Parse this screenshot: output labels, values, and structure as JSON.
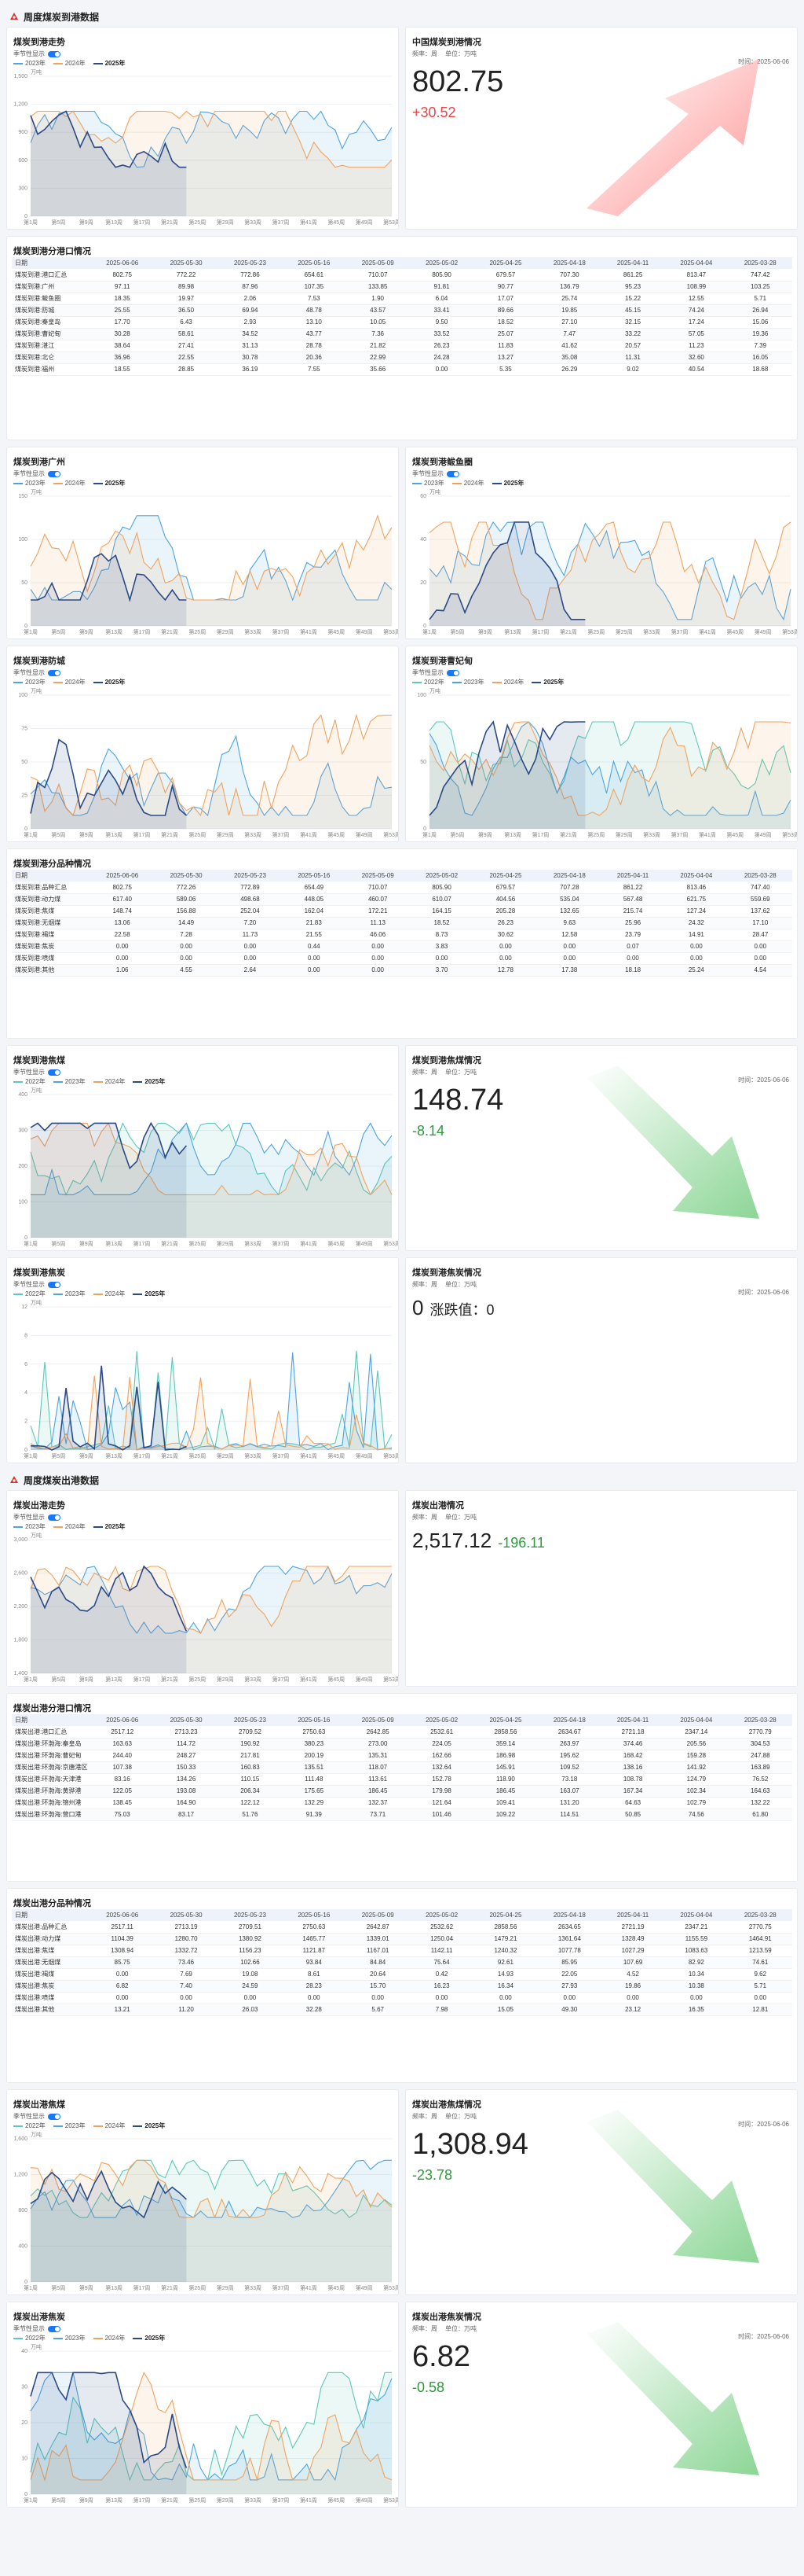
{
  "sections": {
    "arrival": "周度煤炭到港数据",
    "departure": "周度煤炭出港数据"
  },
  "common": {
    "toggle_label": "季节性显示",
    "unit_label": "万吨",
    "meta_freq": "频率：周",
    "meta_unit": "单位：万吨",
    "time_label": "时间：2025-06-06",
    "week_ticks": [
      "第1周",
      "第5周",
      "第9周",
      "第13周",
      "第17周",
      "第21周",
      "第25周",
      "第29周",
      "第33周",
      "第37周",
      "第41周",
      "第45周",
      "第49周",
      "第53周"
    ]
  },
  "legends": {
    "three": [
      "2023年",
      "2024年",
      "2025年"
    ],
    "four": [
      "2022年",
      "2023年",
      "2024年",
      "2025年"
    ]
  },
  "colors": {
    "y2022": "#5cc8b8",
    "y2023": "#4fa3e0",
    "y2024": "#f0a35e",
    "y2025": "#2b4a86",
    "up": "#e64545",
    "down": "#2e9a3c"
  },
  "arrival_trend": {
    "title": "煤炭到港走势",
    "yticks": [
      "1,500",
      "1,200",
      "900",
      "600",
      "300",
      "0"
    ]
  },
  "arrival_info": {
    "title": "中国煤炭到港情况",
    "value": "802.75",
    "change": "+30.52"
  },
  "port_table": {
    "title": "煤炭到港分港口情况",
    "headers": [
      "日期",
      "2025-06-06",
      "2025-05-30",
      "2025-05-23",
      "2025-05-16",
      "2025-05-09",
      "2025-05-02",
      "2025-04-25",
      "2025-04-18",
      "2025-04-11",
      "2025-04-04",
      "2025-03-28"
    ],
    "rows": [
      [
        "煤炭到港:港口汇总",
        "802.75",
        "772.22",
        "772.86",
        "654.61",
        "710.07",
        "805.90",
        "679.57",
        "707.30",
        "861.25",
        "813.47",
        "747.42"
      ],
      [
        "煤炭到港:广州",
        "97.11",
        "89.98",
        "87.96",
        "107.35",
        "133.85",
        "91.81",
        "90.77",
        "136.79",
        "95.23",
        "108.99",
        "103.25"
      ],
      [
        "煤炭到港:鲅鱼圈",
        "18.35",
        "19.97",
        "2.06",
        "7.53",
        "1.90",
        "6.04",
        "17.07",
        "25.74",
        "15.22",
        "12.55",
        "5.71"
      ],
      [
        "煤炭到港:防城",
        "25.55",
        "36.50",
        "69.94",
        "48.78",
        "43.57",
        "33.41",
        "89.66",
        "19.85",
        "45.15",
        "74.24",
        "26.94"
      ],
      [
        "煤炭到港:秦皇岛",
        "17.70",
        "6.43",
        "2.93",
        "13.10",
        "10.05",
        "9.50",
        "18.52",
        "27.10",
        "32.15",
        "17.24",
        "15.06"
      ],
      [
        "煤炭到港:曹妃甸",
        "30.28",
        "58.61",
        "34.52",
        "43.77",
        "7.36",
        "33.52",
        "25.07",
        "7.47",
        "33.22",
        "57.05",
        "19.36"
      ],
      [
        "煤炭到港:湛江",
        "38.64",
        "27.41",
        "31.13",
        "28.78",
        "21.82",
        "26.23",
        "11.83",
        "41.62",
        "20.57",
        "11.23",
        "7.39"
      ],
      [
        "煤炭到港:北仑",
        "36.96",
        "22.55",
        "30.78",
        "20.36",
        "22.99",
        "24.28",
        "13.27",
        "35.08",
        "11.31",
        "32.60",
        "16.05"
      ],
      [
        "煤炭到港:福州",
        "18.55",
        "28.85",
        "36.19",
        "7.55",
        "35.66",
        "0.00",
        "5.35",
        "26.29",
        "9.02",
        "40.54",
        "18.68"
      ]
    ]
  },
  "guangzhou": {
    "title": "煤炭到港广州",
    "yticks": [
      "150",
      "100",
      "50",
      "0"
    ]
  },
  "bayuquan": {
    "title": "煤炭到港鲅鱼圈",
    "yticks": [
      "60",
      "40",
      "20",
      "0"
    ]
  },
  "fangcheng": {
    "title": "煤炭到港防城",
    "yticks": [
      "100",
      "75",
      "50",
      "25",
      "0"
    ]
  },
  "caofeidian": {
    "title": "煤炭到港曹妃甸",
    "yticks": [
      "100",
      "50",
      "0"
    ]
  },
  "variety_table": {
    "title": "煤炭到港分品种情况",
    "headers": [
      "日期",
      "2025-06-06",
      "2025-05-30",
      "2025-05-23",
      "2025-05-16",
      "2025-05-09",
      "2025-05-02",
      "2025-04-25",
      "2025-04-18",
      "2025-04-11",
      "2025-04-04",
      "2025-03-28"
    ],
    "rows": [
      [
        "煤炭到港:品种汇总",
        "802.75",
        "772.26",
        "772.89",
        "654.49",
        "710.07",
        "805.90",
        "679.57",
        "707.28",
        "861.22",
        "813.46",
        "747.40"
      ],
      [
        "煤炭到港:动力煤",
        "617.40",
        "589.06",
        "498.68",
        "448.05",
        "460.07",
        "610.07",
        "404.56",
        "535.04",
        "567.48",
        "621.75",
        "559.69"
      ],
      [
        "煤炭到港:焦煤",
        "148.74",
        "156.88",
        "252.04",
        "162.04",
        "172.21",
        "164.15",
        "205.28",
        "132.65",
        "215.74",
        "127.24",
        "137.62"
      ],
      [
        "煤炭到港:无烟煤",
        "13.06",
        "14.49",
        "7.20",
        "21.83",
        "11.13",
        "18.52",
        "26.23",
        "9.63",
        "25.96",
        "24.32",
        "17.10"
      ],
      [
        "煤炭到港:褐煤",
        "22.58",
        "7.28",
        "11.73",
        "21.55",
        "46.06",
        "8.73",
        "30.62",
        "12.58",
        "23.79",
        "14.91",
        "28.47"
      ],
      [
        "煤炭到港:焦炭",
        "0.00",
        "0.00",
        "0.00",
        "0.44",
        "0.00",
        "3.83",
        "0.00",
        "0.00",
        "0.07",
        "0.00",
        "0.00"
      ],
      [
        "煤炭到港:喷煤",
        "0.00",
        "0.00",
        "0.00",
        "0.00",
        "0.00",
        "0.00",
        "0.00",
        "0.00",
        "0.00",
        "0.00",
        "0.00"
      ],
      [
        "煤炭到港:其他",
        "1.06",
        "4.55",
        "2.64",
        "0.00",
        "0.00",
        "3.70",
        "12.78",
        "17.38",
        "18.18",
        "25.24",
        "4.54"
      ]
    ]
  },
  "coking_arrival": {
    "title": "煤炭到港焦煤",
    "yticks": [
      "400",
      "300",
      "200",
      "100",
      "0"
    ]
  },
  "coking_info": {
    "title": "煤炭到港焦煤情况",
    "value": "148.74",
    "change": "-8.14"
  },
  "coke_arrival": {
    "title": "煤炭到港焦炭",
    "yticks": [
      "12",
      "8",
      "6",
      "4",
      "2",
      "0"
    ]
  },
  "coke_info": {
    "title": "煤炭到港焦炭情况",
    "value": "0",
    "change_label": "涨跌值：0"
  },
  "departure_trend": {
    "title": "煤炭出港走势",
    "yticks": [
      "3,000",
      "2,600",
      "2,200",
      "1,800",
      "1,400"
    ]
  },
  "departure_info": {
    "title": "煤炭出港情况",
    "value": "2,517.12",
    "change": "-196.11"
  },
  "dep_port_table": {
    "title": "煤炭出港分港口情况",
    "headers": [
      "日期",
      "2025-06-06",
      "2025-05-30",
      "2025-05-23",
      "2025-05-16",
      "2025-05-09",
      "2025-05-02",
      "2025-04-25",
      "2025-04-18",
      "2025-04-11",
      "2025-04-04",
      "2025-03-28"
    ],
    "rows": [
      [
        "煤炭出港:港口汇总",
        "2517.12",
        "2713.23",
        "2709.52",
        "2750.63",
        "2642.85",
        "2532.61",
        "2858.56",
        "2634.67",
        "2721.18",
        "2347.14",
        "2770.79"
      ],
      [
        "煤炭出港:环渤海:秦皇岛",
        "163.63",
        "114.72",
        "190.92",
        "380.23",
        "273.00",
        "224.05",
        "359.14",
        "263.97",
        "374.46",
        "205.56",
        "304.53"
      ],
      [
        "煤炭出港:环渤海:曹妃甸",
        "244.40",
        "248.27",
        "217.81",
        "200.19",
        "135.31",
        "162.66",
        "186.98",
        "195.62",
        "168.42",
        "159.28",
        "247.88"
      ],
      [
        "煤炭出港:环渤海:京唐港区",
        "107.38",
        "150.33",
        "160.83",
        "135.51",
        "118.07",
        "132.64",
        "145.91",
        "109.52",
        "138.16",
        "141.92",
        "163.89"
      ],
      [
        "煤炭出港:环渤海:天津港",
        "83.16",
        "134.26",
        "110.15",
        "111.48",
        "113.61",
        "152.78",
        "118.90",
        "73.18",
        "108.78",
        "124.79",
        "76.52"
      ],
      [
        "煤炭出港:环渤海:黄骅港",
        "122.05",
        "193.08",
        "206.34",
        "175.65",
        "186.45",
        "179.98",
        "186.45",
        "163.07",
        "167.34",
        "102.34",
        "164.63"
      ],
      [
        "煤炭出港:环渤海:锦州港",
        "138.45",
        "164.90",
        "122.12",
        "132.29",
        "132.37",
        "121.64",
        "109.41",
        "131.20",
        "64.63",
        "102.79",
        "132.22"
      ],
      [
        "煤炭出港:环渤海:营口港",
        "75.03",
        "83.17",
        "51.76",
        "91.39",
        "73.71",
        "101.46",
        "109.22",
        "114.51",
        "50.85",
        "74.56",
        "61.80"
      ]
    ]
  },
  "dep_variety_table": {
    "title": "煤炭出港分品种情况",
    "headers": [
      "日期",
      "2025-06-06",
      "2025-05-30",
      "2025-05-23",
      "2025-05-16",
      "2025-05-09",
      "2025-05-02",
      "2025-04-25",
      "2025-04-18",
      "2025-04-11",
      "2025-04-04",
      "2025-03-28"
    ],
    "rows": [
      [
        "煤炭出港:品种汇总",
        "2517.11",
        "2713.19",
        "2709.51",
        "2750.63",
        "2642.87",
        "2532.62",
        "2858.56",
        "2634.65",
        "2721.19",
        "2347.21",
        "2770.75"
      ],
      [
        "煤炭出港:动力煤",
        "1104.39",
        "1280.70",
        "1380.92",
        "1465.77",
        "1339.01",
        "1250.04",
        "1479.21",
        "1361.64",
        "1328.49",
        "1155.59",
        "1464.91"
      ],
      [
        "煤炭出港:焦煤",
        "1308.94",
        "1332.72",
        "1156.23",
        "1121.87",
        "1167.01",
        "1142.11",
        "1240.32",
        "1077.78",
        "1027.29",
        "1083.63",
        "1213.59"
      ],
      [
        "煤炭出港:无烟煤",
        "85.75",
        "73.46",
        "102.66",
        "93.84",
        "84.84",
        "75.64",
        "92.61",
        "85.95",
        "107.69",
        "82.92",
        "74.61"
      ],
      [
        "煤炭出港:褐煤",
        "0.00",
        "7.69",
        "19.08",
        "8.61",
        "20.64",
        "0.42",
        "14.93",
        "22.05",
        "4.52",
        "10.34",
        "9.62"
      ],
      [
        "煤炭出港:焦炭",
        "6.82",
        "7.40",
        "24.59",
        "28.23",
        "15.70",
        "16.23",
        "16.34",
        "27.93",
        "19.86",
        "10.38",
        "5.71"
      ],
      [
        "煤炭出港:喷煤",
        "0.00",
        "0.00",
        "0.00",
        "0.00",
        "0.00",
        "0.00",
        "0.00",
        "0.00",
        "0.00",
        "0.00",
        "0.00"
      ],
      [
        "煤炭出港:其他",
        "13.21",
        "11.20",
        "26.03",
        "32.28",
        "5.67",
        "7.98",
        "15.05",
        "49.30",
        "23.12",
        "16.35",
        "12.81"
      ]
    ]
  },
  "dep_coking": {
    "title": "煤炭出港焦煤",
    "yticks": [
      "1,600",
      "1,200",
      "800",
      "400",
      "0"
    ]
  },
  "dep_coking_info": {
    "title": "煤炭出港焦煤情况",
    "value": "1,308.94",
    "change": "-23.78"
  },
  "dep_coke": {
    "title": "煤炭出港焦炭",
    "yticks": [
      "40",
      "30",
      "20",
      "10",
      "0"
    ]
  },
  "dep_coke_info": {
    "title": "煤炭出港焦炭情况",
    "value": "6.82",
    "change": "-0.58"
  }
}
